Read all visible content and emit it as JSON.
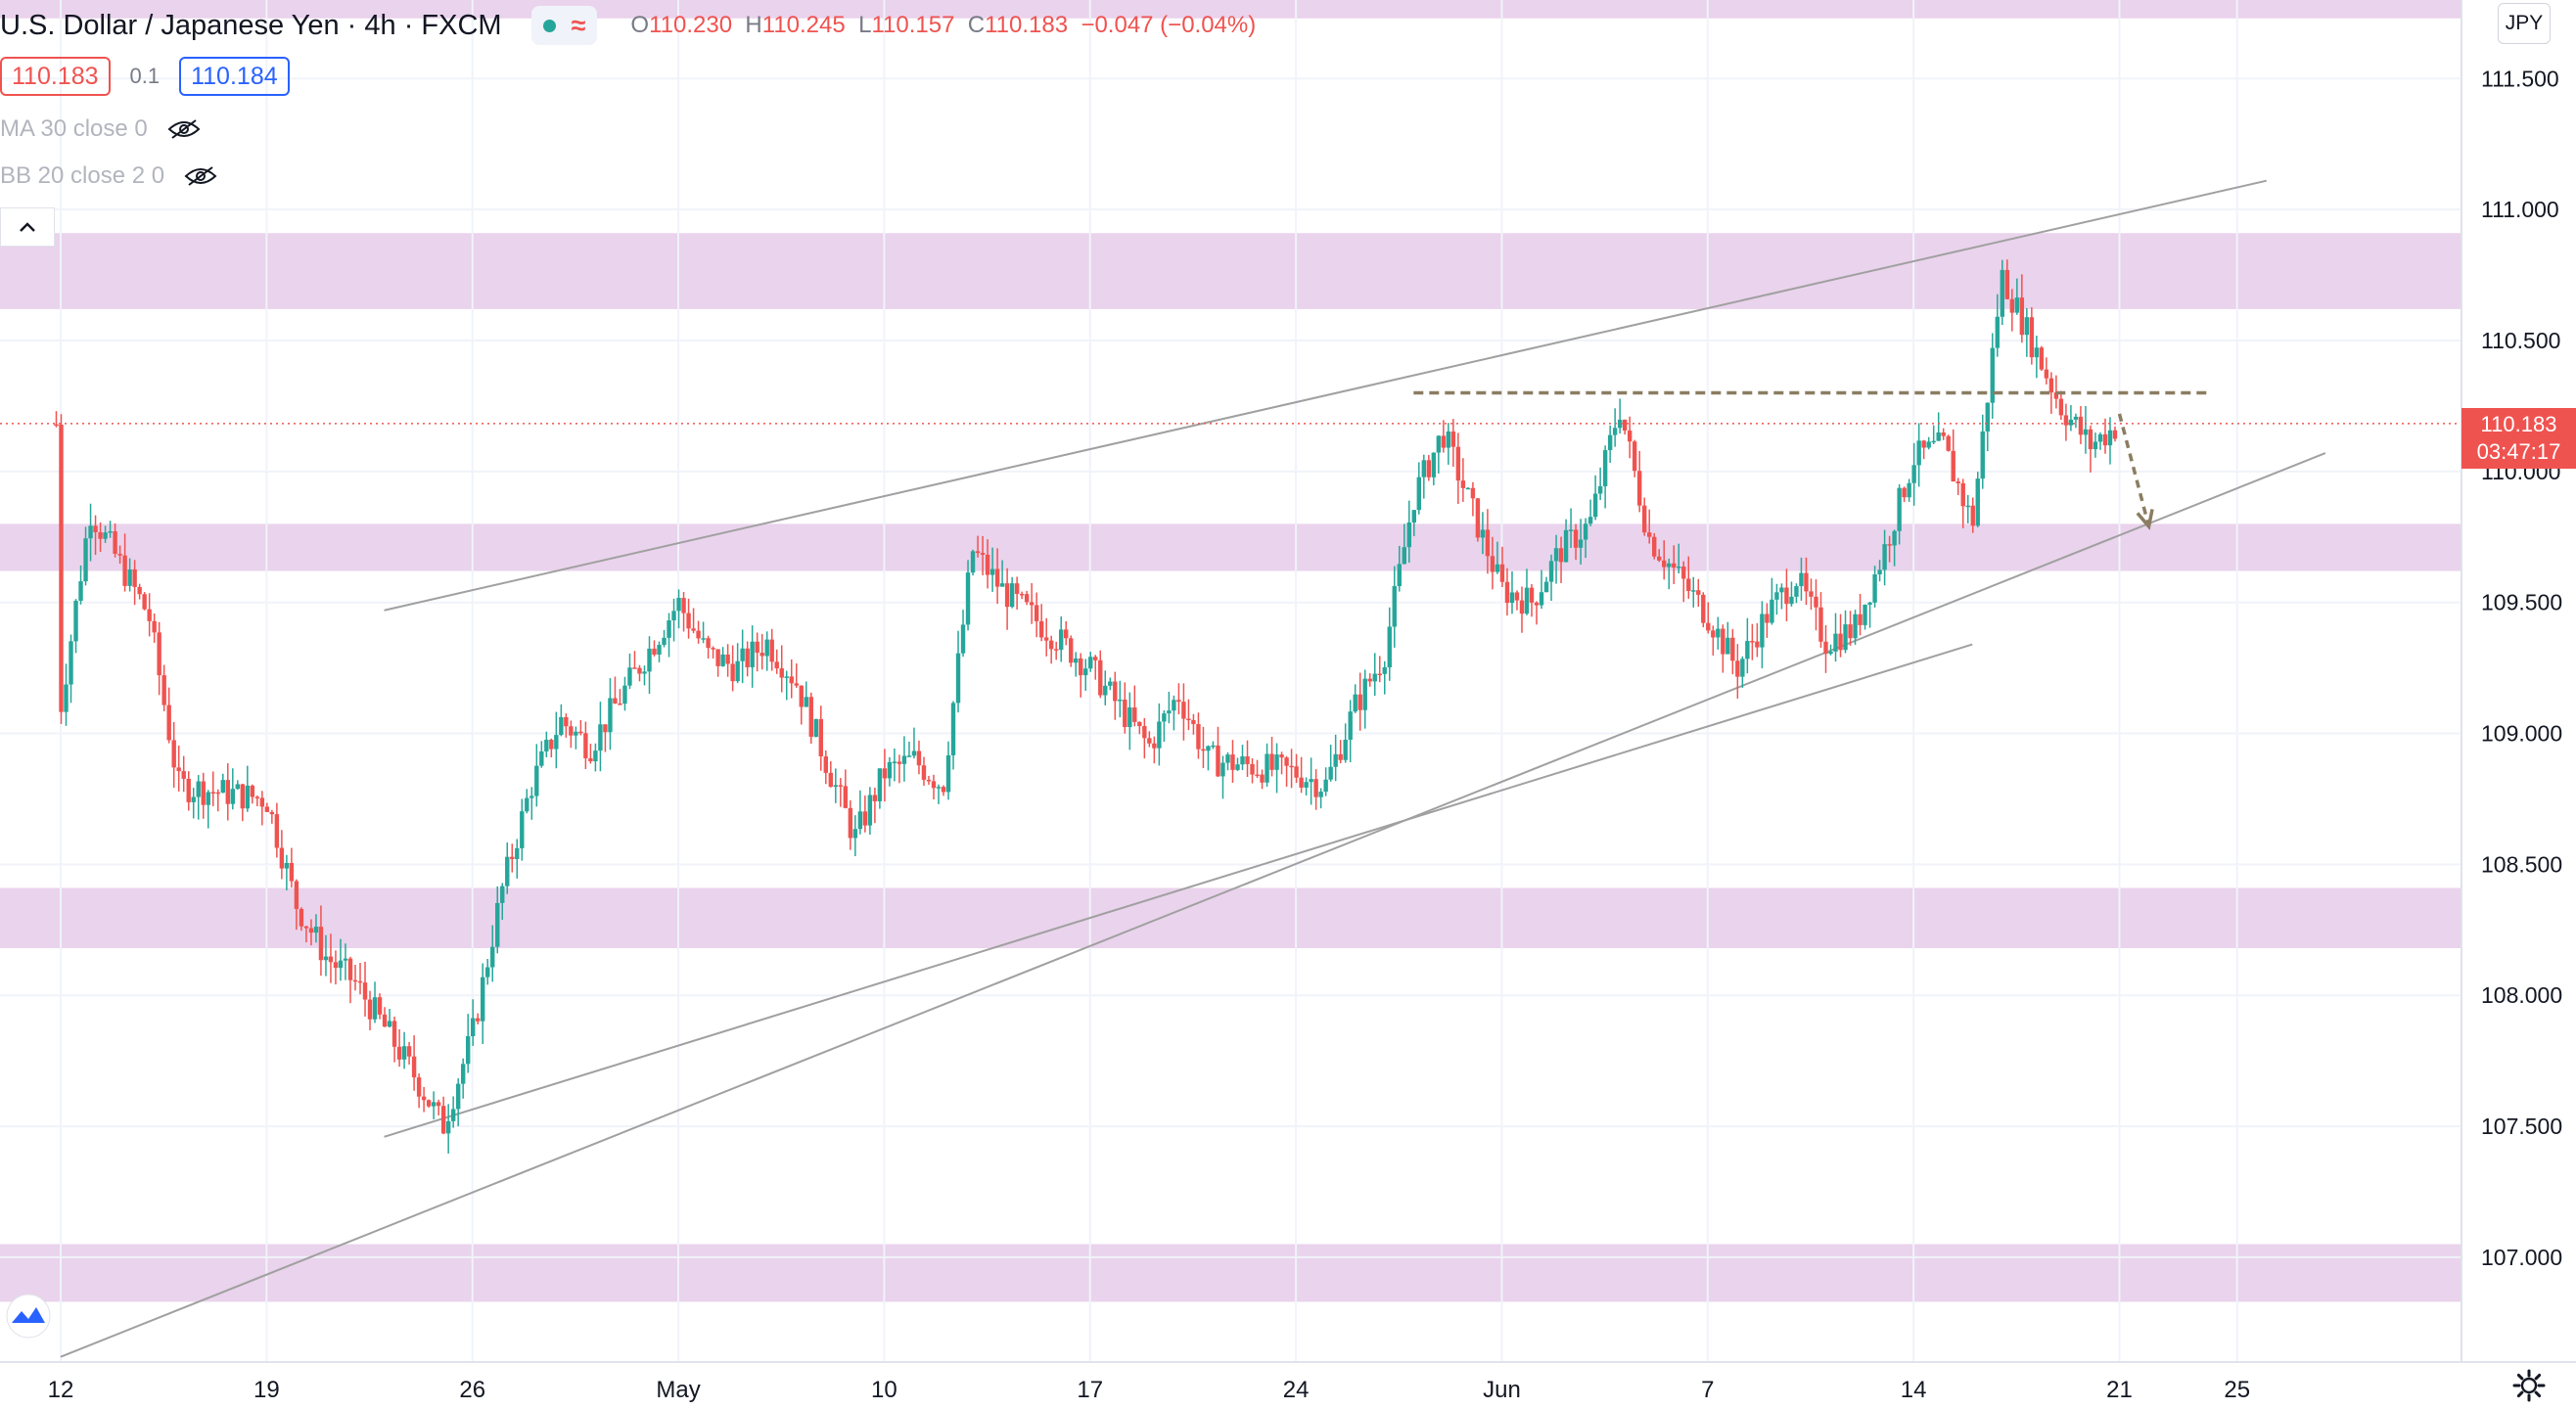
{
  "header": {
    "symbol": "U.S. Dollar / Japanese Yen · 4h · FXCM",
    "ohlc": {
      "o_label": "O",
      "o": "110.230",
      "h_label": "H",
      "h": "110.245",
      "l_label": "L",
      "l": "110.157",
      "c_label": "C",
      "c": "110.183",
      "change": "−0.047 (−0.04%)"
    },
    "sell_price": "110.183",
    "spread": "0.1",
    "buy_price": "110.184",
    "collapse_icon": "chevron-up-icon"
  },
  "indicators": [
    {
      "label": "MA 30 close 0",
      "icon": "eye-off-icon"
    },
    {
      "label": "BB 20 close 2 0",
      "icon": "eye-off-icon"
    }
  ],
  "currency_badge": "JPY",
  "last_price": {
    "price": "110.183",
    "countdown": "03:47:17"
  },
  "colors": {
    "up": "#26a69a",
    "down": "#ef5350",
    "zone": "#ead3ec",
    "trendline": "#a0a0a0",
    "annotation": "#8b7d62"
  },
  "chart_data": {
    "type": "candlestick",
    "y_axis": {
      "position": "right",
      "ylim": [
        106.6,
        111.8
      ],
      "ticks": [
        107.0,
        107.5,
        108.0,
        108.5,
        109.0,
        109.5,
        110.0,
        110.5,
        111.0,
        111.5
      ],
      "tick_labels": [
        "107.000",
        "107.500",
        "108.000",
        "108.500",
        "109.000",
        "109.500",
        "110.000",
        "110.500",
        "111.000",
        "111.500"
      ]
    },
    "x_axis": {
      "tick_labels": [
        "12",
        "19",
        "26",
        "May",
        "10",
        "17",
        "24",
        "Jun",
        "7",
        "14",
        "21",
        "25"
      ],
      "tick_dates": [
        "2021-04-12",
        "2021-04-19",
        "2021-04-26",
        "2021-05-03",
        "2021-05-10",
        "2021-05-17",
        "2021-05-24",
        "2021-05-31",
        "2021-06-07",
        "2021-06-14",
        "2021-06-21",
        "2021-06-25"
      ]
    },
    "grid": true,
    "zones": [
      {
        "from": 110.62,
        "to": 110.91
      },
      {
        "from": 109.62,
        "to": 109.8
      },
      {
        "from": 108.18,
        "to": 108.41
      },
      {
        "from": 106.83,
        "to": 107.05
      },
      {
        "from": 111.73,
        "to": 111.8
      }
    ],
    "trendlines": [
      {
        "points": [
          [
            "2021-04-23",
            109.47
          ],
          [
            "2021-06-26",
            111.11
          ]
        ]
      },
      {
        "points": [
          [
            "2021-04-23",
            107.46
          ],
          [
            "2021-06-16",
            109.34
          ]
        ]
      },
      {
        "points": [
          [
            "2021-04-12",
            106.62
          ],
          [
            "2021-06-28",
            110.07
          ]
        ]
      }
    ],
    "resistance_line": {
      "value": 110.3,
      "from": "2021-05-28",
      "to": "2021-06-24"
    },
    "current_price_line": 110.183,
    "projection_arrow": {
      "from": [
        "2021-06-21",
        110.22
      ],
      "to": [
        "2021-06-22",
        109.79
      ]
    },
    "price_path": [
      [
        "2021-04-12",
        109.1
      ],
      [
        "2021-04-13",
        109.85
      ],
      [
        "2021-04-14",
        109.65
      ],
      [
        "2021-04-15",
        109.45
      ],
      [
        "2021-04-16",
        108.8
      ],
      [
        "2021-04-19",
        108.75
      ],
      [
        "2021-04-20",
        108.35
      ],
      [
        "2021-04-21",
        108.15
      ],
      [
        "2021-04-22",
        108.05
      ],
      [
        "2021-04-23",
        107.88
      ],
      [
        "2021-04-24",
        107.7
      ],
      [
        "2021-04-25",
        107.5
      ],
      [
        "2021-04-26",
        107.85
      ],
      [
        "2021-04-27",
        108.4
      ],
      [
        "2021-04-28",
        108.8
      ],
      [
        "2021-04-29",
        109.05
      ],
      [
        "2021-04-30",
        108.95
      ],
      [
        "2021-05-03",
        109.5
      ],
      [
        "2021-05-04",
        109.3
      ],
      [
        "2021-05-05",
        109.25
      ],
      [
        "2021-05-06",
        109.35
      ],
      [
        "2021-05-07",
        109.2
      ],
      [
        "2021-05-09",
        108.6
      ],
      [
        "2021-05-10",
        108.85
      ],
      [
        "2021-05-11",
        108.9
      ],
      [
        "2021-05-12",
        108.8
      ],
      [
        "2021-05-13",
        109.7
      ],
      [
        "2021-05-14",
        109.55
      ],
      [
        "2021-05-17",
        109.25
      ],
      [
        "2021-05-18",
        109.1
      ],
      [
        "2021-05-19",
        108.95
      ],
      [
        "2021-05-20",
        109.15
      ],
      [
        "2021-05-21",
        108.9
      ],
      [
        "2021-05-24",
        108.85
      ],
      [
        "2021-05-25",
        108.8
      ],
      [
        "2021-05-26",
        109.1
      ],
      [
        "2021-05-27",
        109.3
      ],
      [
        "2021-05-28",
        109.9
      ],
      [
        "2021-05-29",
        110.15
      ],
      [
        "2021-05-31",
        109.55
      ],
      [
        "2021-06-01",
        109.5
      ],
      [
        "2021-06-02",
        109.7
      ],
      [
        "2021-06-03",
        109.8
      ],
      [
        "2021-06-04",
        110.25
      ],
      [
        "2021-06-05",
        109.75
      ],
      [
        "2021-06-07",
        109.45
      ],
      [
        "2021-06-08",
        109.25
      ],
      [
        "2021-06-09",
        109.45
      ],
      [
        "2021-06-10",
        109.6
      ],
      [
        "2021-06-11",
        109.35
      ],
      [
        "2021-06-12",
        109.4
      ],
      [
        "2021-06-13",
        109.7
      ],
      [
        "2021-06-14",
        110.05
      ],
      [
        "2021-06-15",
        110.1
      ],
      [
        "2021-06-16",
        109.8
      ],
      [
        "2021-06-17",
        110.75
      ],
      [
        "2021-06-18",
        110.5
      ],
      [
        "2021-06-19",
        110.25
      ],
      [
        "2021-06-20",
        110.1
      ],
      [
        "2021-06-21",
        110.18
      ]
    ],
    "axis_tick_labels_ordered": [
      "12",
      "19",
      "26",
      "May",
      "10",
      "17",
      "24",
      "Jun",
      "7",
      "14",
      "21",
      "25"
    ]
  }
}
